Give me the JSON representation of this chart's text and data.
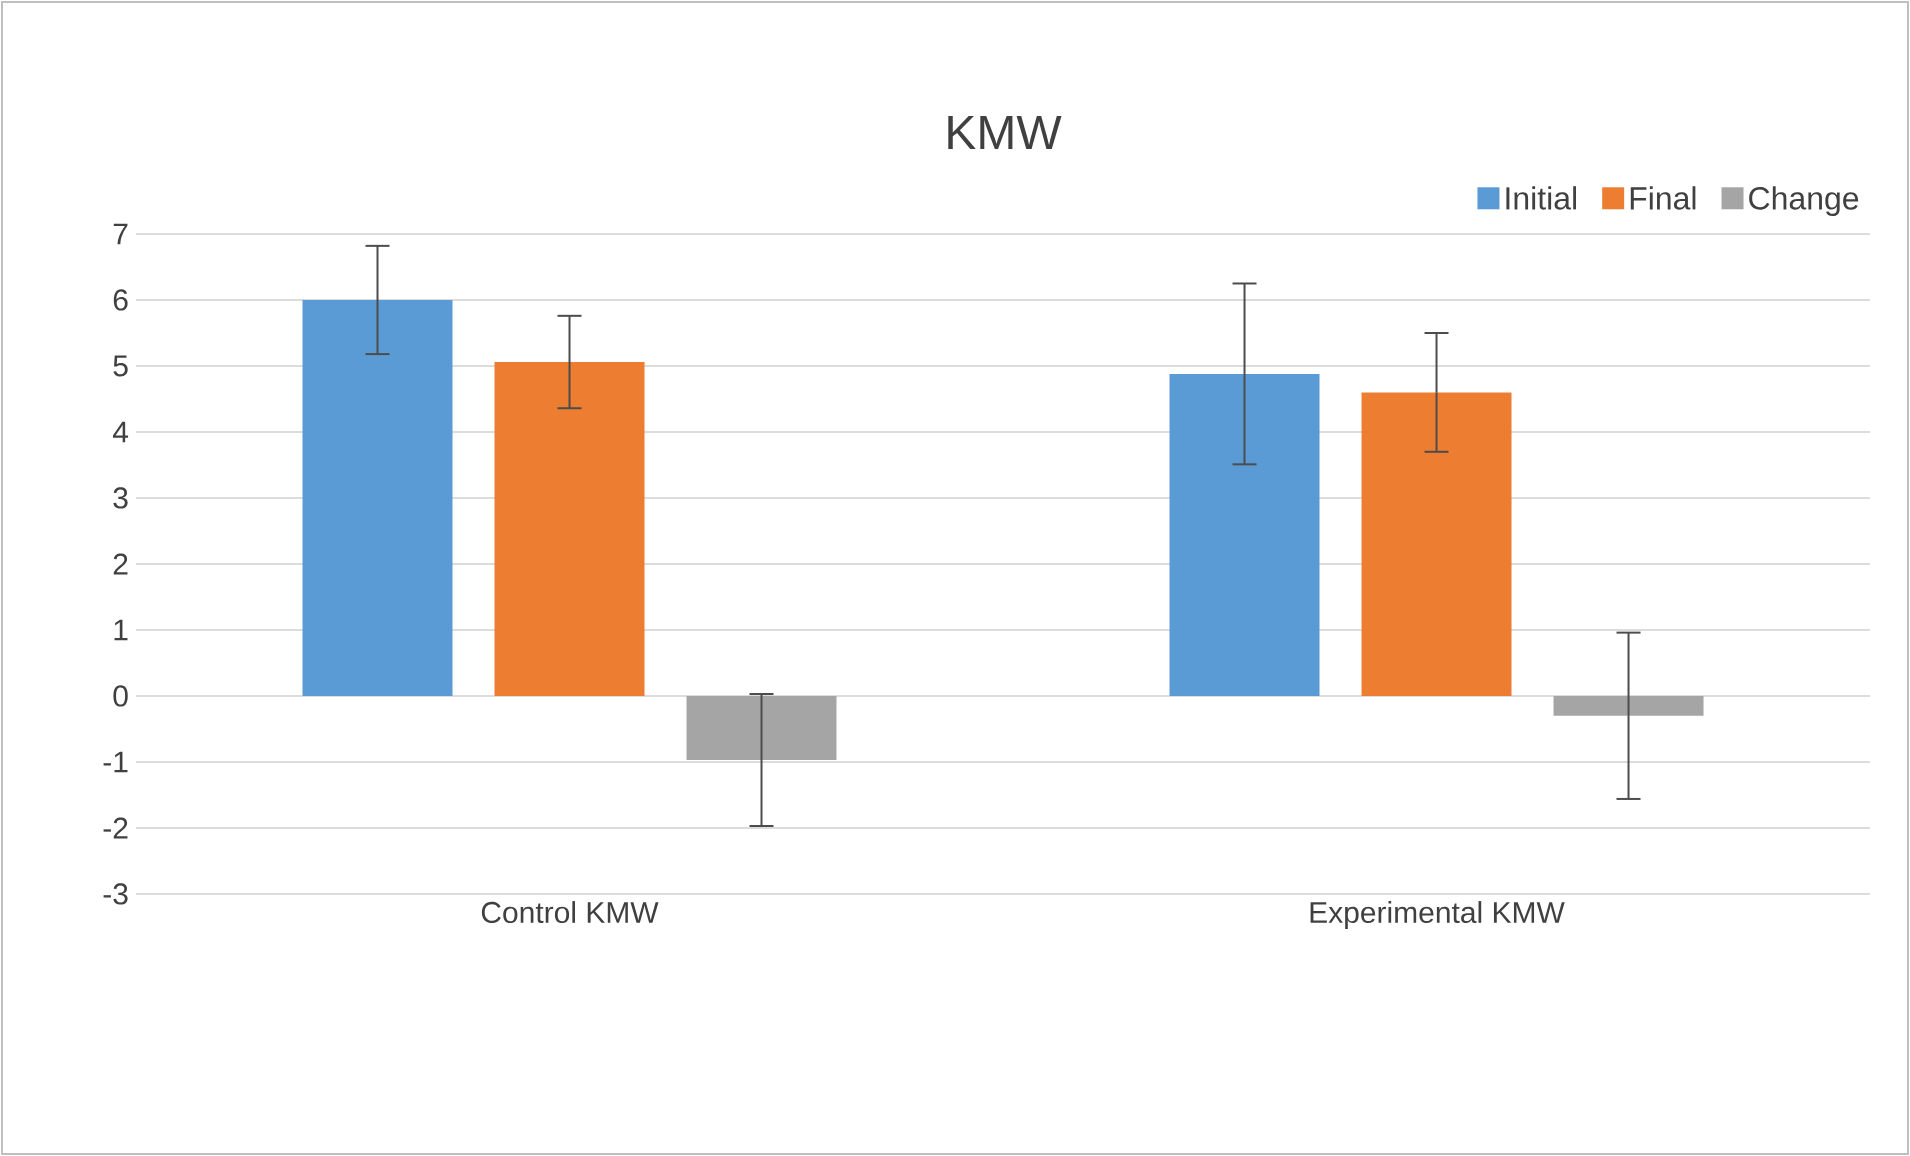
{
  "chart_data": {
    "type": "bar",
    "title": "KMW",
    "categories": [
      "Control KMW",
      "Experimental KMW"
    ],
    "series": [
      {
        "name": "Initial",
        "color": "#5b9bd5",
        "values": [
          6.0,
          4.88
        ],
        "errors": [
          0.82,
          1.37
        ]
      },
      {
        "name": "Final",
        "color": "#ed7d31",
        "values": [
          5.06,
          4.6
        ],
        "errors": [
          0.7,
          0.9
        ]
      },
      {
        "name": "Change",
        "color": "#a5a5a5",
        "values": [
          -0.97,
          -0.3
        ],
        "errors": [
          1.0,
          1.26
        ]
      }
    ],
    "ylim": [
      -3,
      7
    ],
    "yticks": [
      -3,
      -2,
      -1,
      0,
      1,
      2,
      3,
      4,
      5,
      6,
      7
    ],
    "grid": "y",
    "legend": "top right"
  }
}
